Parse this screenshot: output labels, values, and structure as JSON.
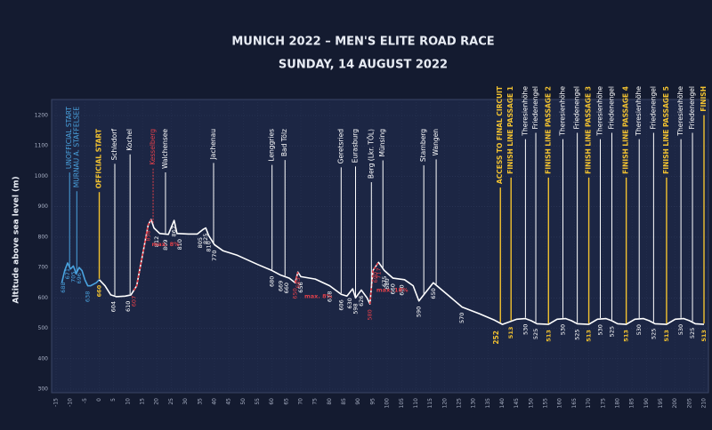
{
  "chart_data": {
    "type": "line",
    "title": "MUNICH 2022 – MEN'S ELITE ROAD RACE",
    "subtitle": "SUNDAY, 14 AUGUST 2022",
    "y_label": "Altitude above sea level (m)",
    "xlim": [
      -15,
      210
    ],
    "xticks": [
      -15,
      -10,
      -5,
      0,
      5,
      10,
      15,
      20,
      25,
      30,
      35,
      40,
      45,
      50,
      55,
      60,
      65,
      70,
      75,
      80,
      85,
      90,
      95,
      100,
      105,
      110,
      115,
      120,
      125,
      130,
      135,
      140,
      145,
      150,
      155,
      160,
      165,
      170,
      175,
      180,
      185,
      190,
      195,
      200,
      205,
      210
    ],
    "ylim": [
      300,
      1200
    ],
    "yticks": [
      300,
      400,
      500,
      600,
      700,
      800,
      900,
      1000,
      1100,
      1200
    ],
    "grid": true,
    "series": [
      {
        "name": "neutral",
        "color": "#4aa3df",
        "x": [
          -13,
          -12,
          -11,
          -10,
          -9,
          -8,
          -7,
          -6,
          -5,
          -4,
          -3,
          -1,
          0
        ],
        "values": [
          650,
          690,
          715,
          695,
          705,
          680,
          700,
          690,
          660,
          640,
          640,
          650,
          660
        ]
      },
      {
        "name": "race",
        "color": "#ffffff",
        "x": [
          0,
          2,
          4,
          6,
          9,
          11,
          13,
          17,
          18,
          19,
          21,
          24,
          26,
          27,
          31,
          34,
          36,
          37,
          38,
          40,
          43,
          48,
          55,
          60,
          63,
          66,
          68,
          69,
          70,
          75,
          80,
          84,
          86,
          88,
          89,
          91,
          93,
          94,
          95,
          97,
          99,
          102,
          106,
          109,
          111,
          116,
          121,
          126,
          132,
          137,
          140,
          145,
          148,
          150,
          152,
          156,
          159,
          162,
          164,
          166,
          170,
          173,
          176,
          178,
          180,
          183,
          186,
          189,
          191,
          193,
          197,
          200,
          203,
          205,
          207,
          210
        ],
        "values": [
          660,
          640,
          610,
          604,
          606,
          610,
          640,
          840,
          858,
          830,
          812,
          809,
          855,
          812,
          810,
          810,
          825,
          830,
          805,
          775,
          755,
          740,
          710,
          690,
          675,
          665,
          650,
          685,
          670,
          662,
          640,
          612,
          606,
          630,
          600,
          626,
          600,
          580,
          690,
          717,
          690,
          665,
          660,
          640,
          590,
          650,
          610,
          570,
          548,
          528,
          513,
          530,
          532,
          525,
          515,
          513,
          530,
          532,
          525,
          515,
          513,
          530,
          532,
          525,
          515,
          513,
          530,
          532,
          525,
          515,
          513,
          530,
          532,
          525,
          515,
          513
        ]
      }
    ],
    "climbs": [
      {
        "from": 12,
        "to": 18
      },
      {
        "from": 68,
        "to": 69
      },
      {
        "from": 94,
        "to": 97
      }
    ],
    "climb_color": "#e0404a",
    "places": [
      {
        "km": -10.3,
        "name": "UNOFFICIAL START",
        "color": "#4aa3df"
      },
      {
        "km": -7.8,
        "name": "MURNAU A. STAFFELSEE",
        "color": "#4aa3df"
      },
      {
        "km": 0,
        "name": "OFFICIAL START",
        "color": "#f2c230"
      },
      {
        "km": 5.4,
        "name": "Schledorf",
        "color": "#ffffff"
      },
      {
        "km": 10.7,
        "name": "Kochel",
        "color": "#ffffff"
      },
      {
        "km": 18.7,
        "name": "Kesselberg",
        "color": "#e0404a"
      },
      {
        "km": 23,
        "name": "Walchensee",
        "color": "#ffffff"
      },
      {
        "km": 39.7,
        "name": "Jachenau",
        "color": "#ffffff"
      },
      {
        "km": 60,
        "name": "Lenggries",
        "color": "#ffffff"
      },
      {
        "km": 64.5,
        "name": "Bad Tölz",
        "color": "#ffffff"
      },
      {
        "km": 84,
        "name": "Geretsried",
        "color": "#ffffff"
      },
      {
        "km": 89,
        "name": "Eurasburg",
        "color": "#ffffff"
      },
      {
        "km": 94.5,
        "name": "Berg (Lkr. TÖL)",
        "color": "#ffffff"
      },
      {
        "km": 98.5,
        "name": "Münsing",
        "color": "#ffffff"
      },
      {
        "km": 112.7,
        "name": "Starnberg",
        "color": "#ffffff"
      },
      {
        "km": 117,
        "name": "Wangen",
        "color": "#ffffff"
      },
      {
        "km": 139.3,
        "name": "ACCESS TO FINAL CIRCUIT",
        "color": "#f2c230",
        "note": "252"
      },
      {
        "km": 143,
        "name": "FINISH LINE PASSAGE 1",
        "color": "#f2c230"
      },
      {
        "km": 148,
        "name": "Theresienhöhe",
        "color": "#ffffff"
      },
      {
        "km": 151.6,
        "name": "Friedenengel",
        "color": "#ffffff"
      },
      {
        "km": 156,
        "name": "FINISH LINE PASSAGE 2",
        "color": "#f2c230"
      },
      {
        "km": 161,
        "name": "Theresienhöhe",
        "color": "#ffffff"
      },
      {
        "km": 166,
        "name": "Friedenengel",
        "color": "#ffffff"
      },
      {
        "km": 170,
        "name": "FINISH LINE PASSAGE 3",
        "color": "#f2c230"
      },
      {
        "km": 174,
        "name": "Theresienhöhe",
        "color": "#ffffff"
      },
      {
        "km": 178,
        "name": "Friedenengel",
        "color": "#ffffff"
      },
      {
        "km": 183,
        "name": "FINISH LINE PASSAGE 4",
        "color": "#f2c230"
      },
      {
        "km": 187.5,
        "name": "Theresienhöhe",
        "color": "#ffffff"
      },
      {
        "km": 192.5,
        "name": "Friedenengel",
        "color": "#ffffff"
      },
      {
        "km": 197,
        "name": "FINISH LINE PASSAGE 5",
        "color": "#f2c230"
      },
      {
        "km": 202,
        "name": "Theresienhöhe",
        "color": "#ffffff"
      },
      {
        "km": 206,
        "name": "Friedenengel",
        "color": "#ffffff"
      },
      {
        "km": 210,
        "name": "FINISH",
        "color": "#f2c230"
      }
    ],
    "elevation_labels": [
      {
        "km": -12.5,
        "value": 688,
        "color": "#4aa3df"
      },
      {
        "km": -11,
        "value": 671,
        "color": "#4aa3df"
      },
      {
        "km": -9,
        "value": 705,
        "color": "#4aa3df"
      },
      {
        "km": -7,
        "value": 696,
        "color": "#4aa3df"
      },
      {
        "km": -4,
        "value": 638,
        "color": "#4aa3df"
      },
      {
        "km": 0,
        "value": 660,
        "color": "#f2c230"
      },
      {
        "km": 5,
        "value": 604,
        "color": "#ffffff"
      },
      {
        "km": 10,
        "value": 610,
        "color": "#ffffff"
      },
      {
        "km": 12,
        "value": 607,
        "color": "#e0404a"
      },
      {
        "km": 17,
        "value": 858,
        "color": "#e0404a"
      },
      {
        "km": 20,
        "value": 812,
        "color": "#ffffff"
      },
      {
        "km": 23,
        "value": 809,
        "color": "#ffffff"
      },
      {
        "km": 26,
        "value": 862,
        "color": "#ffffff"
      },
      {
        "km": 28,
        "value": 810,
        "color": "#ffffff"
      },
      {
        "km": 35,
        "value": 805,
        "color": "#ffffff"
      },
      {
        "km": 37,
        "value": 825,
        "color": "#ffffff"
      },
      {
        "km": 38,
        "value": 810,
        "color": "#ffffff"
      },
      {
        "km": 40,
        "value": 770,
        "color": "#ffffff"
      },
      {
        "km": 60,
        "value": 680,
        "color": "#ffffff"
      },
      {
        "km": 63,
        "value": 669,
        "color": "#ffffff"
      },
      {
        "km": 65,
        "value": 660,
        "color": "#ffffff"
      },
      {
        "km": 68,
        "value": 650,
        "color": "#e0404a"
      },
      {
        "km": 69,
        "value": 685,
        "color": "#e0404a"
      },
      {
        "km": 70,
        "value": 656,
        "color": "#ffffff"
      },
      {
        "km": 80,
        "value": 618,
        "color": "#ffffff"
      },
      {
        "km": 84,
        "value": 606,
        "color": "#ffffff"
      },
      {
        "km": 87,
        "value": 630,
        "color": "#ffffff"
      },
      {
        "km": 89,
        "value": 598,
        "color": "#ffffff"
      },
      {
        "km": 91,
        "value": 626,
        "color": "#ffffff"
      },
      {
        "km": 94,
        "value": 580,
        "color": "#e0404a"
      },
      {
        "km": 96,
        "value": 690,
        "color": "#e0404a"
      },
      {
        "km": 97,
        "value": 717,
        "color": "#e0404a"
      },
      {
        "km": 99,
        "value": 675,
        "color": "#ffffff"
      },
      {
        "km": 100,
        "value": 680,
        "color": "#ffffff"
      },
      {
        "km": 102,
        "value": 660,
        "color": "#ffffff"
      },
      {
        "km": 105,
        "value": 660,
        "color": "#ffffff"
      },
      {
        "km": 111,
        "value": 590,
        "color": "#ffffff"
      },
      {
        "km": 116,
        "value": 650,
        "color": "#ffffff"
      },
      {
        "km": 126,
        "value": 570,
        "color": "#ffffff"
      },
      {
        "km": 143,
        "value": 513,
        "color": "#f2c230"
      },
      {
        "km": 148,
        "value": 530,
        "color": "#ffffff"
      },
      {
        "km": 151.6,
        "value": 525,
        "color": "#ffffff"
      },
      {
        "km": 156,
        "value": 513,
        "color": "#f2c230"
      },
      {
        "km": 161,
        "value": 530,
        "color": "#ffffff"
      },
      {
        "km": 166,
        "value": 525,
        "color": "#ffffff"
      },
      {
        "km": 170,
        "value": 513,
        "color": "#f2c230"
      },
      {
        "km": 174,
        "value": 530,
        "color": "#ffffff"
      },
      {
        "km": 178,
        "value": 525,
        "color": "#ffffff"
      },
      {
        "km": 183,
        "value": 513,
        "color": "#f2c230"
      },
      {
        "km": 187.5,
        "value": 530,
        "color": "#ffffff"
      },
      {
        "km": 192.5,
        "value": 525,
        "color": "#ffffff"
      },
      {
        "km": 197,
        "value": 513,
        "color": "#f2c230"
      },
      {
        "km": 202,
        "value": 530,
        "color": "#ffffff"
      },
      {
        "km": 206,
        "value": 525,
        "color": "#ffffff"
      },
      {
        "km": 210,
        "value": 513,
        "color": "#f2c230"
      }
    ],
    "gradients": [
      {
        "km": 17,
        "label": "max. 8%"
      },
      {
        "km": 70,
        "label": "max. 8%"
      },
      {
        "km": 95,
        "label": "max. 18%"
      }
    ]
  }
}
